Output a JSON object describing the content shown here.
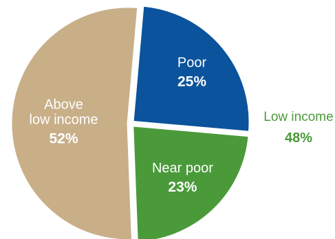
{
  "chart_data": {
    "type": "pie",
    "slices": [
      {
        "label": "Poor",
        "value": 25,
        "value_label": "25%",
        "color": "#0b539c"
      },
      {
        "label": "Near poor",
        "value": 23,
        "value_label": "23%",
        "color": "#4a9a3a"
      },
      {
        "label": "Above low income",
        "label_lines": [
          "Above",
          "low income"
        ],
        "value": 52,
        "value_label": "52%",
        "color": "#c8af88"
      }
    ],
    "group": {
      "label": "Low income",
      "value_label": "48%",
      "color": "#4a9a3a",
      "members": [
        "Poor",
        "Near poor"
      ]
    },
    "start_angle_deg": 5,
    "direction": "clockwise",
    "title": "",
    "legend": "none"
  }
}
